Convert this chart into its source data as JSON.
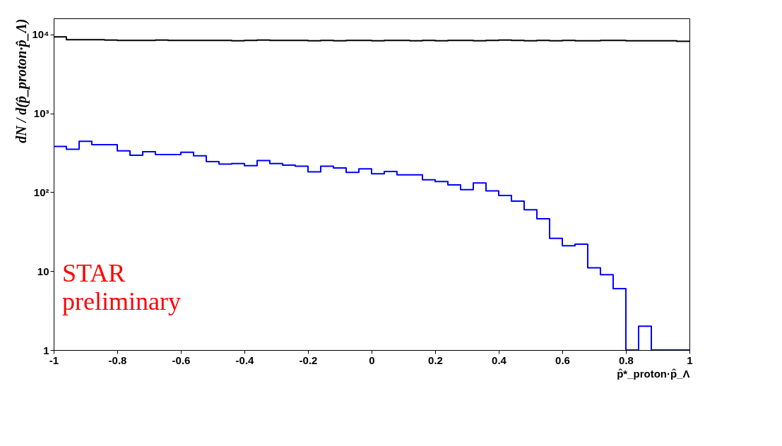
{
  "chart_data": {
    "type": "histogram",
    "xlabel": "p̂*_proton·p̂_Λ",
    "ylabel": "dN / d(p̂_proton·p̂_Λ)",
    "bins": [
      -1,
      -0.96,
      -0.92,
      -0.88,
      -0.84,
      -0.8,
      -0.76,
      -0.72,
      -0.68,
      -0.64,
      -0.6,
      -0.56,
      -0.52,
      -0.48,
      -0.44,
      -0.4,
      -0.36,
      -0.32,
      -0.28,
      -0.24,
      -0.2,
      -0.16,
      -0.12,
      -0.08,
      -0.04,
      0,
      0.04,
      0.08,
      0.12,
      0.16,
      0.2,
      0.24,
      0.28,
      0.32,
      0.36,
      0.4,
      0.44,
      0.48,
      0.52,
      0.56,
      0.6,
      0.64,
      0.68,
      0.72,
      0.76,
      0.8,
      0.84,
      0.88,
      0.92,
      0.96,
      1
    ],
    "series": [
      {
        "color": "#000000",
        "values": [
          9300,
          8600,
          8600,
          8600,
          8500,
          8400,
          8400,
          8400,
          8500,
          8400,
          8400,
          8400,
          8400,
          8400,
          8300,
          8400,
          8500,
          8400,
          8400,
          8400,
          8300,
          8400,
          8300,
          8400,
          8400,
          8300,
          8400,
          8400,
          8300,
          8400,
          8300,
          8400,
          8400,
          8300,
          8400,
          8500,
          8400,
          8300,
          8400,
          8300,
          8400,
          8300,
          8300,
          8400,
          8400,
          8300,
          8300,
          8300,
          8300,
          8200
        ]
      },
      {
        "color": "#0000ff",
        "values": [
          380,
          350,
          441,
          400,
          400,
          334,
          294,
          327,
          300,
          300,
          321,
          290,
          245,
          227,
          231,
          217,
          252,
          231,
          221,
          214,
          181,
          214,
          203,
          179,
          198,
          171,
          183,
          166,
          166,
          144,
          137,
          124,
          108,
          131,
          104,
          91,
          77,
          60,
          46,
          26,
          21,
          22,
          11,
          9,
          6,
          1,
          2,
          1,
          1,
          1
        ]
      }
    ],
    "log": true,
    "ylim": [
      1,
      16000
    ],
    "yticks": [
      1,
      10,
      {
        "value": 100,
        "label": "10²"
      },
      {
        "value": 1000,
        "label": "10³"
      },
      {
        "value": 10000,
        "label": "10⁴"
      }
    ],
    "xlim": [
      -1,
      1
    ],
    "xticks": [
      -1,
      -0.8,
      -0.6,
      -0.4,
      -0.2,
      0,
      0.2,
      0.4,
      0.6,
      0.8,
      1
    ],
    "grid": false,
    "annotations": [
      "STAR preliminary"
    ]
  }
}
